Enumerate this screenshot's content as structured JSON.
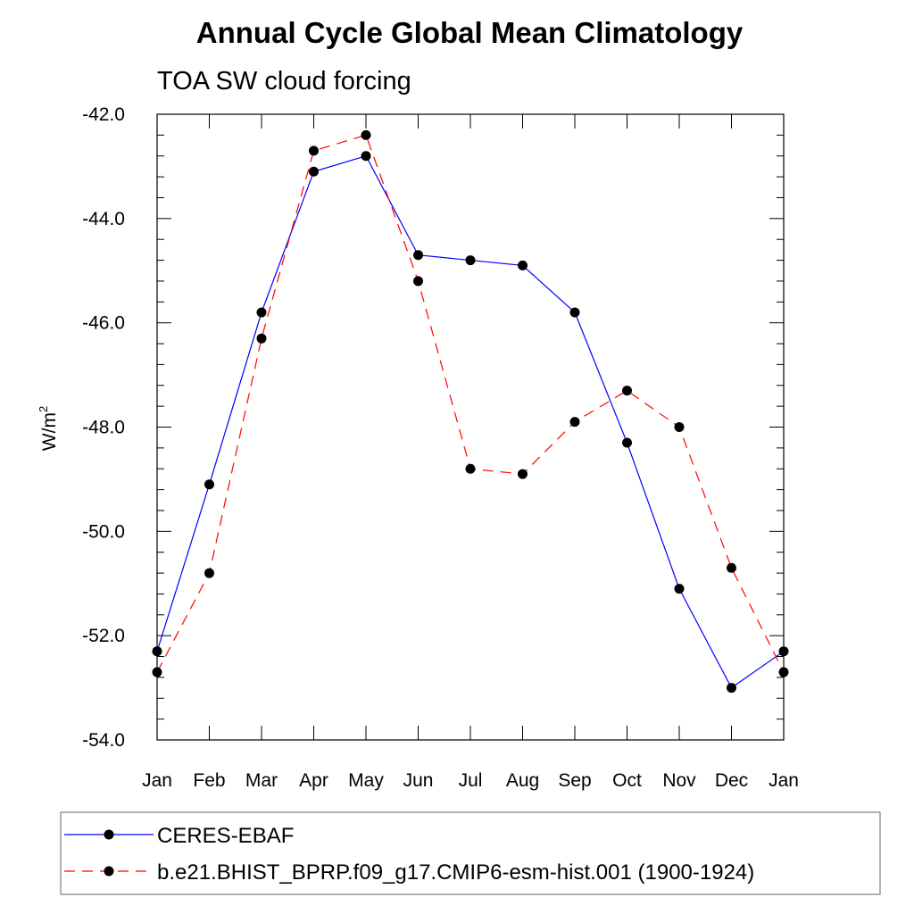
{
  "chart_data": {
    "type": "line",
    "title": "Annual Cycle Global Mean Climatology",
    "subtitle": "TOA SW cloud forcing",
    "ylabel": "W/m",
    "ylabel_superscript": "2",
    "xlabel": "",
    "ylim": [
      -54.0,
      -42.0
    ],
    "yticks": [
      "-42.0",
      "-44.0",
      "-46.0",
      "-48.0",
      "-50.0",
      "-52.0",
      "-54.0"
    ],
    "ytick_values": [
      -42,
      -44,
      -46,
      -48,
      -50,
      -52,
      -54
    ],
    "categories": [
      "Jan",
      "Feb",
      "Mar",
      "Apr",
      "May",
      "Jun",
      "Jul",
      "Aug",
      "Sep",
      "Oct",
      "Nov",
      "Dec",
      "Jan"
    ],
    "grid": false,
    "legend_position": "bottom",
    "series": [
      {
        "name": "CERES-EBAF",
        "color": "#0000ff",
        "style": "solid",
        "marker": "circle",
        "values": [
          -52.3,
          -49.1,
          -45.8,
          -43.1,
          -42.8,
          -44.7,
          -44.8,
          -44.9,
          -45.8,
          -48.3,
          -51.1,
          -53.0,
          -52.3
        ]
      },
      {
        "name": "b.e21.BHIST_BPRP.f09_g17.CMIP6-esm-hist.001 (1900-1924)",
        "color": "#ff0000",
        "style": "dashed",
        "marker": "circle",
        "values": [
          -52.7,
          -50.8,
          -46.3,
          -42.7,
          -42.4,
          -45.2,
          -48.8,
          -48.9,
          -47.9,
          -47.3,
          -48.0,
          -50.7,
          -52.7
        ]
      }
    ]
  }
}
